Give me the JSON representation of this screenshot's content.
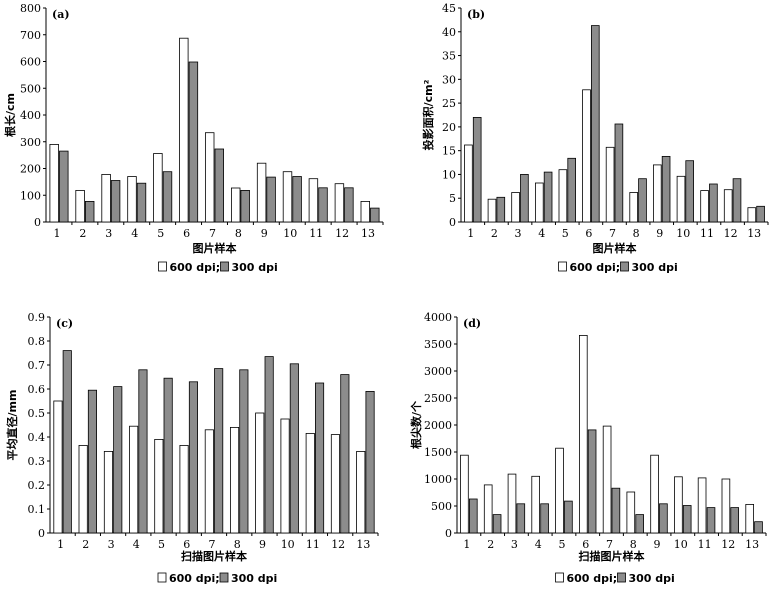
{
  "style": {
    "color_600": "#ffffff",
    "color_300": "#8c8c8c",
    "stroke": "#000000"
  },
  "chart_data": [
    {
      "type": "bar",
      "panel": "(a)",
      "categories": [
        "1",
        "2",
        "3",
        "4",
        "5",
        "6",
        "7",
        "8",
        "9",
        "10",
        "11",
        "12",
        "13"
      ],
      "series": [
        {
          "name": "600 dpi;",
          "values": [
            290,
            118,
            178,
            170,
            256,
            687,
            334,
            127,
            220,
            188,
            162,
            143,
            77
          ]
        },
        {
          "name": "300 dpi",
          "values": [
            265,
            77,
            155,
            145,
            188,
            598,
            273,
            118,
            168,
            170,
            128,
            128,
            52
          ]
        }
      ],
      "ylim": [
        0,
        800
      ],
      "yticks": [
        "0",
        "100",
        "200",
        "300",
        "400",
        "500",
        "600",
        "700",
        "800"
      ],
      "ylabel": "根长/cm",
      "xlabel": "图片样本",
      "legend": {
        "items": [
          "600 dpi;",
          "300 dpi"
        ]
      }
    },
    {
      "type": "bar",
      "panel": "(b)",
      "categories": [
        "1",
        "2",
        "3",
        "4",
        "5",
        "6",
        "7",
        "8",
        "9",
        "10",
        "11",
        "12",
        "13"
      ],
      "series": [
        {
          "name": "600 dpi;",
          "values": [
            16.2,
            4.8,
            6.2,
            8.2,
            11.0,
            27.8,
            15.7,
            6.2,
            12.0,
            9.6,
            6.6,
            6.8,
            3.0
          ]
        },
        {
          "name": "300 dpi",
          "values": [
            22.0,
            5.2,
            10.0,
            10.5,
            13.4,
            41.3,
            20.6,
            9.1,
            13.8,
            12.9,
            8.0,
            9.1,
            3.3
          ]
        }
      ],
      "ylim": [
        0,
        45
      ],
      "yticks": [
        "0",
        "5",
        "10",
        "15",
        "20",
        "25",
        "30",
        "35",
        "40",
        "45"
      ],
      "ylabel": "投影面积/cm²",
      "xlabel": "图片样本",
      "legend": {
        "items": [
          "600 dpi;",
          "300 dpi"
        ]
      }
    },
    {
      "type": "bar",
      "panel": "(c)",
      "categories": [
        "1",
        "2",
        "3",
        "4",
        "5",
        "6",
        "7",
        "8",
        "9",
        "10",
        "11",
        "12",
        "13"
      ],
      "series": [
        {
          "name": "600 dpi;",
          "values": [
            0.55,
            0.365,
            0.34,
            0.445,
            0.39,
            0.365,
            0.43,
            0.44,
            0.5,
            0.475,
            0.415,
            0.41,
            0.34
          ]
        },
        {
          "name": "300 dpi",
          "values": [
            0.76,
            0.595,
            0.61,
            0.68,
            0.645,
            0.63,
            0.685,
            0.68,
            0.735,
            0.705,
            0.625,
            0.66,
            0.59
          ]
        }
      ],
      "ylim": [
        0,
        0.9
      ],
      "yticks": [
        "0",
        "0.1",
        "0.2",
        "0.3",
        "0.4",
        "0.5",
        "0.6",
        "0.7",
        "0.8",
        "0.9"
      ],
      "ylabel": "平均直径/mm",
      "xlabel": "扫描图片样本",
      "legend": {
        "items": [
          "600 dpi;",
          "300 dpi"
        ]
      }
    },
    {
      "type": "bar",
      "panel": "(d)",
      "categories": [
        "1",
        "2",
        "3",
        "4",
        "5",
        "6",
        "7",
        "8",
        "9",
        "10",
        "11",
        "12",
        "13"
      ],
      "series": [
        {
          "name": "600 dpi;",
          "values": [
            1440,
            890,
            1090,
            1050,
            1570,
            3660,
            1980,
            760,
            1440,
            1040,
            1020,
            1000,
            530
          ]
        },
        {
          "name": "300 dpi",
          "values": [
            630,
            340,
            540,
            540,
            590,
            1910,
            830,
            340,
            540,
            510,
            470,
            470,
            210
          ]
        }
      ],
      "ylim": [
        0,
        4000
      ],
      "yticks": [
        "0",
        "500",
        "1000",
        "1500",
        "2000",
        "2500",
        "3000",
        "3500",
        "4000"
      ],
      "ylabel": "根尖数/个",
      "xlabel": "扫描图片样本",
      "legend": {
        "items": [
          "600 dpi;",
          "300 dpi"
        ]
      }
    }
  ]
}
